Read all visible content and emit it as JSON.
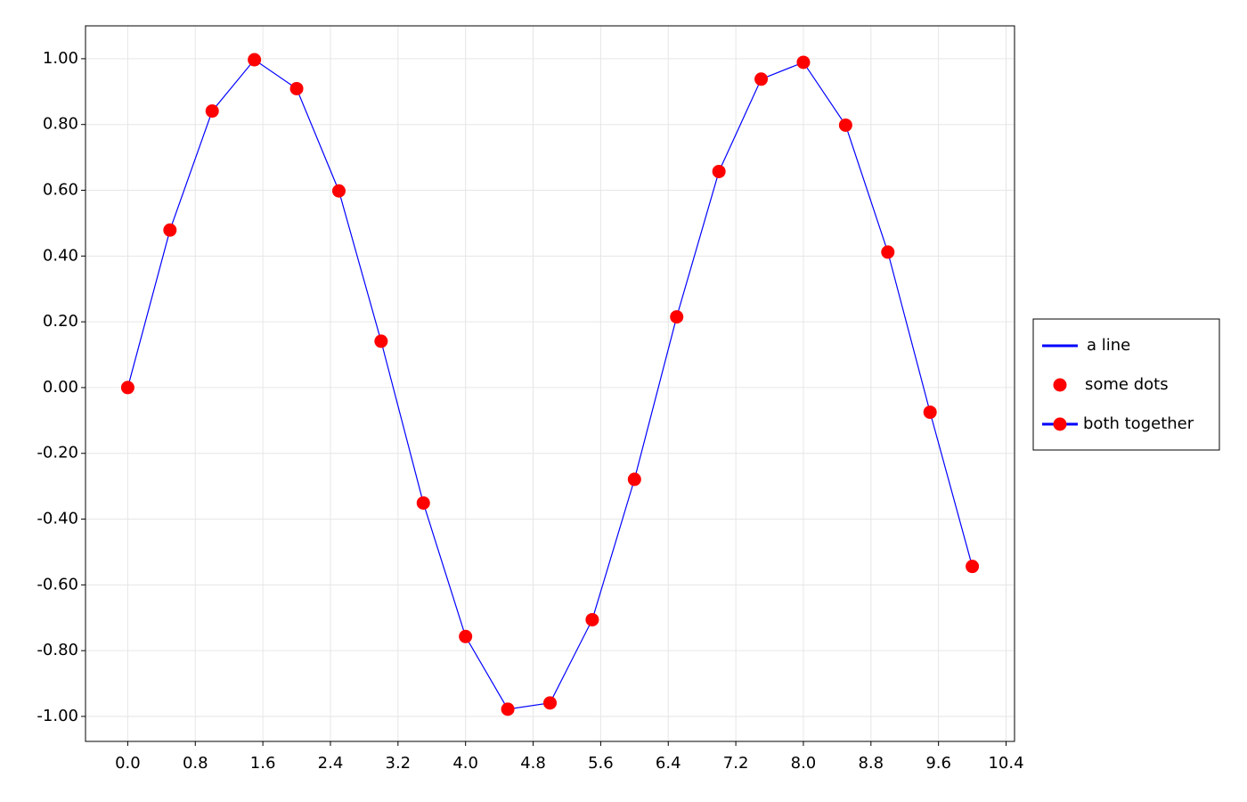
{
  "chart_data": {
    "type": "line",
    "x": [
      0,
      0.5,
      1,
      1.5,
      2,
      2.5,
      3,
      3.5,
      4,
      4.5,
      5,
      5.5,
      6,
      6.5,
      7,
      7.5,
      8,
      8.5,
      9,
      9.5,
      10
    ],
    "series": [
      {
        "name": "a line",
        "color": "#0000ff",
        "style": "line",
        "values": [
          0,
          0.479,
          0.841,
          0.997,
          0.909,
          0.598,
          0.141,
          -0.351,
          -0.757,
          -0.978,
          -0.959,
          -0.706,
          -0.279,
          0.215,
          0.657,
          0.938,
          0.989,
          0.798,
          0.412,
          -0.075,
          -0.544
        ]
      },
      {
        "name": "some dots",
        "color": "#ff0000",
        "style": "markers",
        "values": [
          0,
          0.479,
          0.841,
          0.997,
          0.909,
          0.598,
          0.141,
          -0.351,
          -0.757,
          -0.978,
          -0.959,
          -0.706,
          -0.279,
          0.215,
          0.657,
          0.938,
          0.989,
          0.798,
          0.412,
          -0.075,
          -0.544
        ]
      }
    ],
    "combined_legend_label": "both together",
    "xlim": [
      -0.5,
      10.5
    ],
    "xticks": [
      {
        "value": 0,
        "label": "0.0"
      },
      0.8,
      1.6,
      2.4,
      3.2,
      {
        "value": 4,
        "label": "4.0"
      },
      4.8,
      5.6,
      6.4,
      7.2,
      {
        "value": 8,
        "label": "8.0"
      },
      8.8,
      9.6,
      10.4
    ],
    "ylim": [
      -1.076,
      1.1
    ],
    "yticks": [
      {
        "value": -1,
        "label": "-1.00"
      },
      {
        "value": -0.8,
        "label": "-0.80"
      },
      {
        "value": -0.6,
        "label": "-0.60"
      },
      {
        "value": -0.4,
        "label": "-0.40"
      },
      {
        "value": -0.2,
        "label": "-0.20"
      },
      {
        "value": 0,
        "label": "0.00"
      },
      {
        "value": 0.2,
        "label": "0.20"
      },
      {
        "value": 0.4,
        "label": "0.40"
      },
      {
        "value": 0.6,
        "label": "0.60"
      },
      {
        "value": 0.8,
        "label": "0.80"
      },
      {
        "value": 1,
        "label": "1.00"
      }
    ],
    "grid": true,
    "legend_position": "right"
  }
}
